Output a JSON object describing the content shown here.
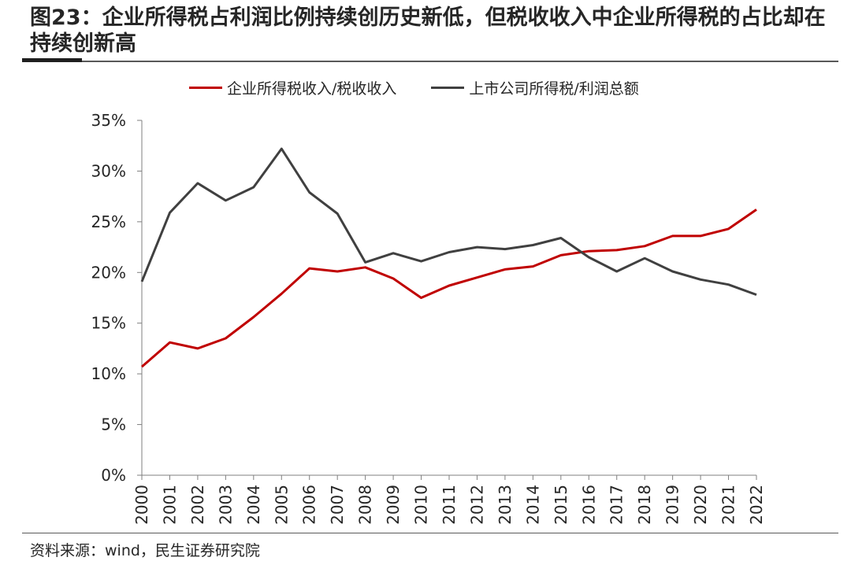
{
  "header": {
    "title": "图23：企业所得税占利润比例持续创历史新低，但税收收入中企业所得税的占比却在持续创新高"
  },
  "footer": {
    "source": "资料来源：wind，民生证券研究院"
  },
  "chart_data": {
    "type": "line",
    "title": "图23：企业所得税占利润比例持续创历史新低，但税收收入中企业所得税的占比却在持续创新高",
    "xlabel": "",
    "ylabel": "",
    "x": [
      "2000",
      "2001",
      "2002",
      "2003",
      "2004",
      "2005",
      "2006",
      "2007",
      "2008",
      "2009",
      "2010",
      "2011",
      "2012",
      "2013",
      "2014",
      "2015",
      "2016",
      "2017",
      "2018",
      "2019",
      "2020",
      "2021",
      "2022"
    ],
    "ylim": [
      0,
      35
    ],
    "yticks": [
      0,
      5,
      10,
      15,
      20,
      25,
      30,
      35
    ],
    "ytick_labels": [
      "0%",
      "5%",
      "10%",
      "15%",
      "20%",
      "25%",
      "30%",
      "35%"
    ],
    "grid": false,
    "legend_position": "top",
    "series": [
      {
        "name": "企业所得税收入/税收收入",
        "color": "#c00000",
        "values": [
          10.7,
          13.1,
          12.5,
          13.5,
          15.6,
          17.9,
          20.4,
          20.1,
          20.5,
          19.4,
          17.5,
          18.7,
          19.5,
          20.3,
          20.6,
          21.7,
          22.1,
          22.2,
          22.6,
          23.6,
          23.6,
          24.3,
          26.2
        ]
      },
      {
        "name": "上市公司所得税/利润总额",
        "color": "#404040",
        "values": [
          19.1,
          25.9,
          28.8,
          27.1,
          28.4,
          32.2,
          27.9,
          25.8,
          21.0,
          21.9,
          21.1,
          22.0,
          22.5,
          22.3,
          22.7,
          23.4,
          21.5,
          20.1,
          21.4,
          20.1,
          19.3,
          18.8,
          17.8
        ]
      }
    ]
  }
}
